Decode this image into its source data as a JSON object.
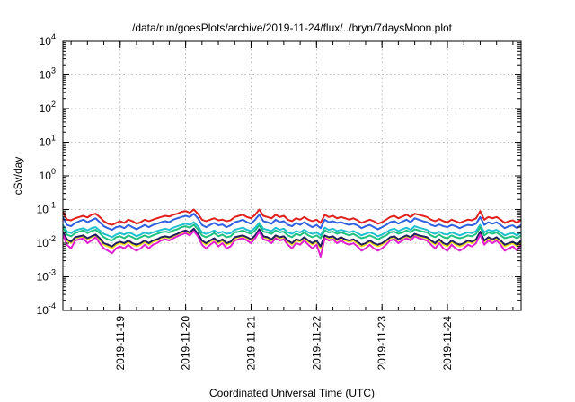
{
  "chart_data": {
    "type": "line",
    "title": "/data/run/goesPlots/archive/2019-11-24/flux/../bryn/7daysMoon.plot",
    "xlabel": "Coordinated Universal Time (UTC)",
    "ylabel": "cSv/day",
    "y_scale": "log",
    "ylim": [
      0.0001,
      10000
    ],
    "xlim": [
      "2019-11-18T03:00",
      "2019-11-25T03:00"
    ],
    "x_ticks": [
      "2019-11-19",
      "2019-11-20",
      "2019-11-21",
      "2019-11-22",
      "2019-11-23",
      "2019-11-24"
    ],
    "y_ticks": [
      {
        "base": "10",
        "exp": "4"
      },
      {
        "base": "10",
        "exp": "3"
      },
      {
        "base": "10",
        "exp": "2"
      },
      {
        "base": "10",
        "exp": "1"
      },
      {
        "base": "10",
        "exp": "0"
      },
      {
        "base": "10",
        "exp": "-1"
      },
      {
        "base": "10",
        "exp": "-2"
      },
      {
        "base": "10",
        "exp": "-3"
      },
      {
        "base": "10",
        "exp": "-4"
      }
    ],
    "grid": true,
    "legend": "none",
    "sample_interval_hours": 1.5,
    "series": [
      {
        "color": "#e0201c",
        "baseline": 0.06,
        "jitter": 0.13,
        "values": [
          0.085,
          0.05,
          0.048,
          0.055,
          0.06,
          0.065,
          0.058,
          0.07,
          0.075,
          0.06,
          0.045,
          0.038,
          0.035,
          0.04,
          0.045,
          0.04,
          0.05,
          0.045,
          0.038,
          0.042,
          0.05,
          0.045,
          0.05,
          0.055,
          0.06,
          0.065,
          0.062,
          0.07,
          0.075,
          0.085,
          0.09,
          0.08,
          0.1,
          0.075,
          0.05,
          0.045,
          0.05,
          0.055,
          0.048,
          0.05,
          0.045,
          0.048,
          0.06,
          0.065,
          0.07,
          0.06,
          0.055,
          0.07,
          0.1,
          0.065,
          0.06,
          0.055,
          0.07,
          0.06,
          0.065,
          0.05,
          0.045,
          0.055,
          0.05,
          0.06,
          0.05,
          0.045,
          0.05,
          0.04,
          0.07,
          0.06,
          0.065,
          0.055,
          0.06,
          0.055,
          0.05,
          0.055,
          0.048,
          0.04,
          0.045,
          0.05,
          0.045,
          0.038,
          0.042,
          0.05,
          0.06,
          0.065,
          0.055,
          0.062,
          0.07,
          0.06,
          0.075,
          0.07,
          0.065,
          0.06,
          0.05,
          0.045,
          0.052,
          0.045,
          0.042,
          0.05,
          0.045,
          0.04,
          0.045,
          0.05,
          0.048,
          0.055,
          0.09,
          0.05,
          0.06,
          0.055,
          0.06,
          0.05,
          0.04,
          0.045,
          0.048,
          0.04,
          0.05,
          0.06,
          0.048,
          0.04,
          0.045,
          0.05,
          0.06,
          0.08,
          0.065,
          0.07
        ]
      },
      {
        "color": "#3060e0",
        "baseline": 0.04,
        "jitter": 0.14,
        "values": [
          0.06,
          0.035,
          0.032,
          0.04,
          0.045,
          0.05,
          0.042,
          0.048,
          0.055,
          0.042,
          0.032,
          0.028,
          0.025,
          0.03,
          0.032,
          0.028,
          0.035,
          0.03,
          0.026,
          0.03,
          0.035,
          0.03,
          0.035,
          0.038,
          0.042,
          0.045,
          0.042,
          0.05,
          0.055,
          0.06,
          0.065,
          0.06,
          0.075,
          0.055,
          0.035,
          0.03,
          0.035,
          0.04,
          0.034,
          0.036,
          0.03,
          0.034,
          0.042,
          0.045,
          0.05,
          0.042,
          0.038,
          0.05,
          0.07,
          0.045,
          0.042,
          0.038,
          0.05,
          0.042,
          0.045,
          0.035,
          0.032,
          0.04,
          0.035,
          0.042,
          0.035,
          0.03,
          0.035,
          0.028,
          0.05,
          0.042,
          0.045,
          0.04,
          0.042,
          0.038,
          0.035,
          0.038,
          0.034,
          0.028,
          0.032,
          0.035,
          0.03,
          0.026,
          0.03,
          0.035,
          0.042,
          0.045,
          0.038,
          0.044,
          0.05,
          0.042,
          0.055,
          0.05,
          0.045,
          0.042,
          0.035,
          0.032,
          0.036,
          0.032,
          0.03,
          0.035,
          0.032,
          0.028,
          0.032,
          0.035,
          0.034,
          0.038,
          0.06,
          0.035,
          0.042,
          0.038,
          0.042,
          0.035,
          0.028,
          0.032,
          0.034,
          0.028,
          0.035,
          0.042,
          0.034,
          0.028,
          0.032,
          0.035,
          0.042,
          0.055,
          0.045,
          0.05
        ]
      },
      {
        "color": "#20c0d0",
        "baseline": 0.024,
        "jitter": 0.15,
        "values": [
          0.035,
          0.022,
          0.02,
          0.024,
          0.026,
          0.028,
          0.024,
          0.028,
          0.03,
          0.024,
          0.019,
          0.017,
          0.015,
          0.018,
          0.02,
          0.018,
          0.021,
          0.019,
          0.016,
          0.018,
          0.021,
          0.019,
          0.021,
          0.023,
          0.025,
          0.027,
          0.025,
          0.029,
          0.032,
          0.035,
          0.038,
          0.035,
          0.042,
          0.032,
          0.021,
          0.019,
          0.021,
          0.024,
          0.02,
          0.022,
          0.019,
          0.02,
          0.025,
          0.027,
          0.029,
          0.025,
          0.023,
          0.029,
          0.04,
          0.027,
          0.025,
          0.023,
          0.029,
          0.025,
          0.027,
          0.021,
          0.019,
          0.023,
          0.021,
          0.025,
          0.021,
          0.019,
          0.021,
          0.017,
          0.029,
          0.025,
          0.027,
          0.023,
          0.025,
          0.023,
          0.021,
          0.023,
          0.02,
          0.017,
          0.019,
          0.021,
          0.019,
          0.016,
          0.018,
          0.021,
          0.025,
          0.027,
          0.023,
          0.026,
          0.029,
          0.025,
          0.032,
          0.029,
          0.027,
          0.025,
          0.021,
          0.019,
          0.022,
          0.019,
          0.018,
          0.021,
          0.019,
          0.017,
          0.019,
          0.021,
          0.02,
          0.023,
          0.035,
          0.021,
          0.025,
          0.023,
          0.025,
          0.021,
          0.017,
          0.019,
          0.02,
          0.017,
          0.021,
          0.025,
          0.02,
          0.017,
          0.019,
          0.021,
          0.025,
          0.032,
          0.027,
          0.029
        ]
      },
      {
        "color": "#20c080",
        "baseline": 0.02,
        "jitter": 0.22,
        "values": [
          0.03,
          0.018,
          0.016,
          0.02,
          0.022,
          0.024,
          0.02,
          0.023,
          0.025,
          0.02,
          0.015,
          0.013,
          0.012,
          0.015,
          0.016,
          0.014,
          0.017,
          0.015,
          0.013,
          0.015,
          0.017,
          0.015,
          0.017,
          0.019,
          0.021,
          0.022,
          0.021,
          0.024,
          0.026,
          0.03,
          0.032,
          0.029,
          0.035,
          0.026,
          0.017,
          0.015,
          0.017,
          0.02,
          0.016,
          0.018,
          0.015,
          0.016,
          0.021,
          0.022,
          0.024,
          0.021,
          0.019,
          0.024,
          0.034,
          0.022,
          0.021,
          0.019,
          0.024,
          0.021,
          0.022,
          0.017,
          0.015,
          0.019,
          0.017,
          0.021,
          0.017,
          0.015,
          0.017,
          0.014,
          0.024,
          0.021,
          0.022,
          0.019,
          0.021,
          0.019,
          0.017,
          0.019,
          0.016,
          0.014,
          0.015,
          0.017,
          0.015,
          0.013,
          0.015,
          0.017,
          0.021,
          0.022,
          0.019,
          0.021,
          0.024,
          0.021,
          0.026,
          0.024,
          0.022,
          0.021,
          0.017,
          0.015,
          0.018,
          0.015,
          0.014,
          0.017,
          0.015,
          0.014,
          0.015,
          0.017,
          0.016,
          0.019,
          0.03,
          0.017,
          0.021,
          0.019,
          0.021,
          0.017,
          0.014,
          0.015,
          0.016,
          0.014,
          0.017,
          0.021,
          0.016,
          0.014,
          0.015,
          0.017,
          0.021,
          0.026,
          0.022,
          0.024
        ]
      },
      {
        "color": "#f0e020",
        "baseline": 0.013,
        "jitter": 0.3,
        "values": [
          0.02,
          0.012,
          0.01,
          0.014,
          0.015,
          0.016,
          0.013,
          0.015,
          0.017,
          0.013,
          0.009,
          0.008,
          0.007,
          0.009,
          0.01,
          0.009,
          0.011,
          0.009,
          0.008,
          0.009,
          0.011,
          0.009,
          0.011,
          0.012,
          0.014,
          0.015,
          0.014,
          0.016,
          0.018,
          0.02,
          0.022,
          0.019,
          0.025,
          0.018,
          0.011,
          0.009,
          0.011,
          0.013,
          0.01,
          0.012,
          0.009,
          0.01,
          0.014,
          0.015,
          0.016,
          0.014,
          0.012,
          0.016,
          0.024,
          0.015,
          0.014,
          0.012,
          0.016,
          0.014,
          0.015,
          0.011,
          0.009,
          0.012,
          0.011,
          0.014,
          0.011,
          0.009,
          0.011,
          0.007,
          0.016,
          0.014,
          0.015,
          0.012,
          0.014,
          0.012,
          0.011,
          0.012,
          0.01,
          0.008,
          0.009,
          0.011,
          0.009,
          0.008,
          0.009,
          0.011,
          0.014,
          0.015,
          0.012,
          0.014,
          0.016,
          0.014,
          0.018,
          0.016,
          0.015,
          0.014,
          0.011,
          0.009,
          0.012,
          0.009,
          0.008,
          0.011,
          0.009,
          0.008,
          0.009,
          0.011,
          0.01,
          0.012,
          0.02,
          0.011,
          0.014,
          0.012,
          0.014,
          0.011,
          0.008,
          0.009,
          0.01,
          0.008,
          0.011,
          0.014,
          0.01,
          0.008,
          0.009,
          0.011,
          0.014,
          0.018,
          0.015,
          0.016
        ]
      },
      {
        "color": "#202060",
        "baseline": 0.014,
        "jitter": 0.28,
        "values": [
          0.022,
          0.013,
          0.011,
          0.015,
          0.016,
          0.017,
          0.014,
          0.016,
          0.018,
          0.014,
          0.01,
          0.009,
          0.008,
          0.01,
          0.011,
          0.01,
          0.012,
          0.01,
          0.009,
          0.01,
          0.012,
          0.01,
          0.012,
          0.013,
          0.015,
          0.016,
          0.015,
          0.017,
          0.019,
          0.022,
          0.024,
          0.021,
          0.027,
          0.019,
          0.012,
          0.01,
          0.012,
          0.014,
          0.011,
          0.013,
          0.01,
          0.011,
          0.015,
          0.016,
          0.017,
          0.015,
          0.013,
          0.017,
          0.026,
          0.016,
          0.015,
          0.013,
          0.017,
          0.015,
          0.016,
          0.012,
          0.01,
          0.013,
          0.012,
          0.015,
          0.012,
          0.01,
          0.012,
          0.008,
          0.017,
          0.015,
          0.016,
          0.013,
          0.015,
          0.013,
          0.012,
          0.013,
          0.011,
          0.009,
          0.01,
          0.012,
          0.01,
          0.009,
          0.01,
          0.012,
          0.015,
          0.016,
          0.013,
          0.015,
          0.017,
          0.015,
          0.019,
          0.017,
          0.016,
          0.015,
          0.012,
          0.01,
          0.013,
          0.01,
          0.009,
          0.012,
          0.01,
          0.009,
          0.01,
          0.012,
          0.011,
          0.013,
          0.022,
          0.012,
          0.015,
          0.013,
          0.015,
          0.012,
          0.009,
          0.01,
          0.011,
          0.009,
          0.012,
          0.015,
          0.011,
          0.009,
          0.01,
          0.012,
          0.015,
          0.019,
          0.016,
          0.017
        ]
      },
      {
        "color": "#e020d0",
        "baseline": 0.011,
        "jitter": 0.38,
        "values": [
          0.018,
          0.009,
          0.007,
          0.012,
          0.013,
          0.014,
          0.01,
          0.012,
          0.015,
          0.01,
          0.007,
          0.006,
          0.005,
          0.007,
          0.008,
          0.007,
          0.009,
          0.007,
          0.006,
          0.007,
          0.009,
          0.007,
          0.009,
          0.01,
          0.012,
          0.013,
          0.012,
          0.014,
          0.016,
          0.018,
          0.02,
          0.017,
          0.023,
          0.016,
          0.009,
          0.007,
          0.009,
          0.011,
          0.008,
          0.01,
          0.007,
          0.008,
          0.012,
          0.013,
          0.014,
          0.012,
          0.01,
          0.014,
          0.022,
          0.013,
          0.012,
          0.01,
          0.014,
          0.012,
          0.013,
          0.009,
          0.007,
          0.01,
          0.009,
          0.012,
          0.009,
          0.007,
          0.009,
          0.004,
          0.014,
          0.012,
          0.013,
          0.01,
          0.012,
          0.01,
          0.009,
          0.01,
          0.008,
          0.006,
          0.007,
          0.009,
          0.007,
          0.006,
          0.007,
          0.009,
          0.012,
          0.013,
          0.01,
          0.012,
          0.014,
          0.012,
          0.016,
          0.014,
          0.013,
          0.012,
          0.009,
          0.007,
          0.01,
          0.007,
          0.006,
          0.009,
          0.007,
          0.006,
          0.007,
          0.009,
          0.008,
          0.01,
          0.018,
          0.009,
          0.012,
          0.01,
          0.012,
          0.009,
          0.006,
          0.007,
          0.008,
          0.006,
          0.009,
          0.012,
          0.008,
          0.006,
          0.007,
          0.009,
          0.012,
          0.016,
          0.013,
          0.014
        ]
      }
    ]
  }
}
